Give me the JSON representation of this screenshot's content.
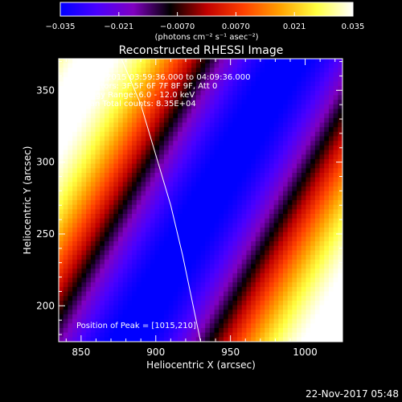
{
  "chart_data": {
    "type": "heatmap",
    "title": "Reconstructed RHESSI Image",
    "xlabel": "Heliocentric X (arcsec)",
    "ylabel": "Heliocentric Y (arcsec)",
    "xlim": [
      835,
      1025
    ],
    "ylim": [
      175,
      372
    ],
    "x_ticks": [
      850,
      900,
      950,
      1000
    ],
    "y_ticks": [
      200,
      250,
      300,
      350
    ],
    "colorbar": {
      "label": "(photons cm⁻² s⁻¹ asec⁻²)",
      "range": [
        -0.035,
        0.035
      ],
      "tick_values": [
        -0.035,
        -0.021,
        -0.007,
        0.007,
        0.021,
        0.035
      ],
      "tick_labels": [
        "−0.035",
        "−0.021",
        "−0.0070",
        "0.0070",
        "0.021",
        "0.035"
      ],
      "colors": [
        "#0000ff",
        "#4a00ff",
        "#8000c0",
        "#000000",
        "#c00000",
        "#ff4000",
        "#ffa000",
        "#ffff40",
        "#ffffff"
      ]
    },
    "info_lines": [
      "22-Jun-2015 03:59:36.000 to 04:09:36.000",
      "Detectors: 3F 5F 6F 7F 8F 9F, Att 0",
      "Energy Range: 6.0 - 12.0 keV",
      "Clean     Total counts: 8.35E+04"
    ],
    "peak_label": "Position of Peak = [1015,210]",
    "peak": [
      1015,
      210
    ],
    "limb_curve": [
      [
        877,
        372
      ],
      [
        890,
        340
      ],
      [
        900,
        305
      ],
      [
        910,
        270
      ],
      [
        918,
        235
      ],
      [
        925,
        200
      ],
      [
        930,
        175
      ]
    ],
    "fringe_model": {
      "description_of_pattern": "diagonal stripes: bright (positive) in upper-left and lower-right corners, blue (negative) band through center",
      "value_at": [
        {
          "x": 840,
          "y": 360,
          "v": 0.035
        },
        {
          "x": 900,
          "y": 290,
          "v": -0.03
        },
        {
          "x": 960,
          "y": 230,
          "v": 0.0
        },
        {
          "x": 1010,
          "y": 190,
          "v": 0.035
        }
      ]
    }
  },
  "footer": {
    "timestamp": "22-Nov-2017 05:48"
  }
}
